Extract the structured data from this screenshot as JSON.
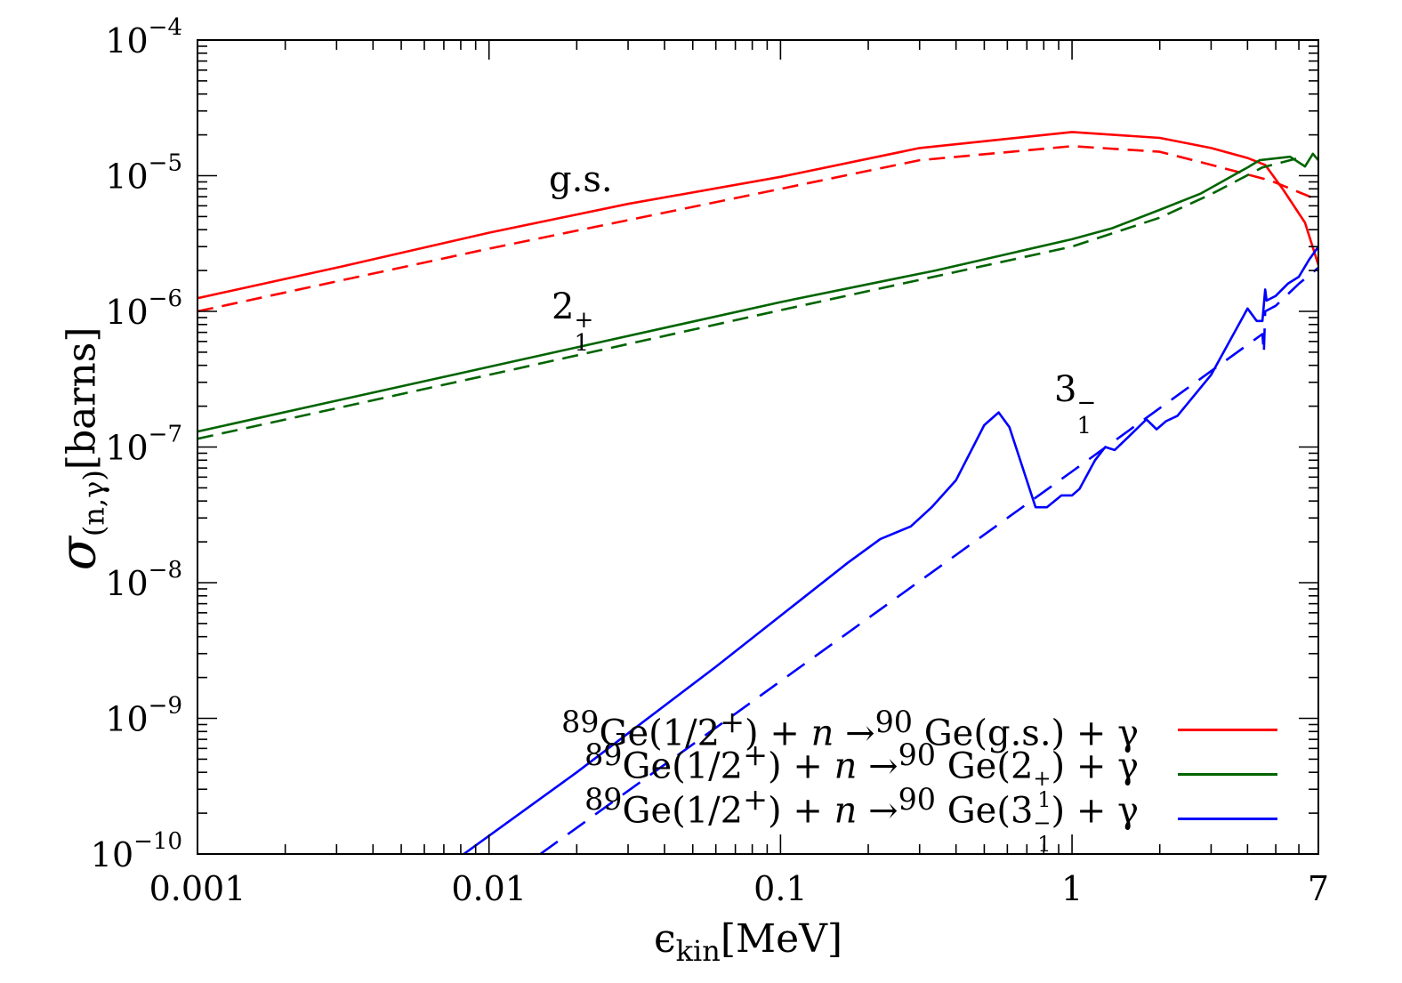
{
  "chart_data": {
    "type": "line",
    "xscale": "log",
    "yscale": "log",
    "xlim": [
      0.001,
      7
    ],
    "ylim": [
      1e-10,
      0.0001
    ],
    "xlabel": {
      "symbol": "ϵ",
      "sub": "kin",
      "unit": "[MeV]"
    },
    "ylabel": {
      "symbol": "σ",
      "sub": "(n,γ)",
      "unit": "[barns]"
    },
    "x_tick_labels": [
      "0.001",
      "0.01",
      "0.1",
      "1",
      "7"
    ],
    "x_tick_values": [
      0.001,
      0.01,
      0.1,
      1,
      7
    ],
    "y_tick_labels": [
      {
        "base": "10",
        "exp": "−4",
        "value": 0.0001
      },
      {
        "base": "10",
        "exp": "−5",
        "value": 1e-05
      },
      {
        "base": "10",
        "exp": "−6",
        "value": 1e-06
      },
      {
        "base": "10",
        "exp": "−7",
        "value": 1e-07
      },
      {
        "base": "10",
        "exp": "−8",
        "value": 1e-08
      },
      {
        "base": "10",
        "exp": "−9",
        "value": 1e-09
      },
      {
        "base": "10",
        "exp": "−10",
        "value": 1e-10
      }
    ],
    "grid": false,
    "legend_position": "bottom-right",
    "annotations": [
      {
        "text": "g.s.",
        "sub": "",
        "sup": ""
      },
      {
        "text": "2",
        "sub": "1",
        "sup": "+"
      },
      {
        "text": "3",
        "sub": "1",
        "sup": "−"
      }
    ],
    "legend": [
      {
        "pre": "89",
        "a": "Ge(1/2",
        "asup": "+",
        "b": ") + ",
        "n": "n",
        "c": " →",
        "sup90": "90",
        "d": " Ge(",
        "state": "g.s.",
        "ssub": "",
        "ssup": "",
        "e": ") + γ",
        "color": "#ff0000"
      },
      {
        "pre": "89",
        "a": "Ge(1/2",
        "asup": "+",
        "b": ") + ",
        "n": "n",
        "c": " →",
        "sup90": "90",
        "d": " Ge(",
        "state": "2",
        "ssub": "1",
        "ssup": "+",
        "e": ") + γ",
        "color": "#006400"
      },
      {
        "pre": "89",
        "a": "Ge(1/2",
        "asup": "+",
        "b": ") + ",
        "n": "n",
        "c": " →",
        "sup90": "90",
        "d": " Ge(",
        "state": "3",
        "ssub": "1",
        "ssup": "−",
        "e": ") + γ",
        "color": "#0000ff"
      }
    ],
    "series": [
      {
        "color": "#ff0000",
        "style": "solid",
        "points": [
          [
            0.001,
            1.25e-06
          ],
          [
            0.003,
            2.1e-06
          ],
          [
            0.01,
            3.8e-06
          ],
          [
            0.03,
            6.2e-06
          ],
          [
            0.1,
            9.8e-06
          ],
          [
            0.3,
            1.6e-05
          ],
          [
            1,
            2.1e-05
          ],
          [
            2,
            1.9e-05
          ],
          [
            3,
            1.6e-05
          ],
          [
            4,
            1.35e-05
          ],
          [
            4.6,
            1.2e-05
          ],
          [
            5.3,
            7.9e-06
          ],
          [
            6.3,
            4.5e-06
          ],
          [
            7,
            2.2e-06
          ]
        ]
      },
      {
        "color": "#ff0000",
        "style": "dashed",
        "points": [
          [
            0.001,
            1e-06
          ],
          [
            0.01,
            2.9e-06
          ],
          [
            0.1,
            8e-06
          ],
          [
            0.3,
            1.3e-05
          ],
          [
            1,
            1.65e-05
          ],
          [
            2,
            1.5e-05
          ],
          [
            2.8,
            1.25e-05
          ],
          [
            4.8,
            9.2e-06
          ],
          [
            7,
            6.6e-06
          ]
        ]
      },
      {
        "color": "#006400",
        "style": "solid",
        "points": [
          [
            0.001,
            1.3e-07
          ],
          [
            0.01,
            3.9e-07
          ],
          [
            0.1,
            1.17e-06
          ],
          [
            0.34,
            2e-06
          ],
          [
            1,
            3.4e-06
          ],
          [
            1.37,
            4.1e-06
          ],
          [
            2,
            5.6e-06
          ],
          [
            2.77,
            7.4e-06
          ],
          [
            4,
            1.15e-05
          ],
          [
            4.4,
            1.3e-05
          ],
          [
            5.6,
            1.38e-05
          ],
          [
            6.3,
            1.17e-05
          ],
          [
            6.7,
            1.45e-05
          ],
          [
            7,
            1.3e-05
          ]
        ]
      },
      {
        "color": "#006400",
        "style": "dashed",
        "points": [
          [
            0.001,
            1.15e-07
          ],
          [
            0.01,
            3.4e-07
          ],
          [
            0.1,
            1.02e-06
          ],
          [
            1,
            3e-06
          ],
          [
            2,
            4.9e-06
          ],
          [
            3,
            7.3e-06
          ],
          [
            4.5,
            1.15e-05
          ],
          [
            6,
            1.35e-05
          ]
        ]
      },
      {
        "color": "#0000ff",
        "style": "solid",
        "points": [
          [
            0.0082,
            1e-10
          ],
          [
            0.02,
            4e-10
          ],
          [
            0.06,
            2.4e-09
          ],
          [
            0.17,
            1.4e-08
          ],
          [
            0.22,
            2.1e-08
          ],
          [
            0.28,
            2.6e-08
          ],
          [
            0.33,
            3.6e-08
          ],
          [
            0.4,
            5.7e-08
          ],
          [
            0.5,
            1.45e-07
          ],
          [
            0.56,
            1.8e-07
          ],
          [
            0.61,
            1.4e-07
          ],
          [
            0.75,
            3.6e-08
          ],
          [
            0.82,
            3.6e-08
          ],
          [
            0.92,
            4.4e-08
          ],
          [
            1.0,
            4.4e-08
          ],
          [
            1.06,
            4.9e-08
          ],
          [
            1.2,
            8e-08
          ],
          [
            1.3,
            1e-07
          ],
          [
            1.4,
            9.5e-08
          ],
          [
            1.6,
            1.25e-07
          ],
          [
            1.8,
            1.6e-07
          ],
          [
            1.95,
            1.35e-07
          ],
          [
            2.1,
            1.55e-07
          ],
          [
            2.3,
            1.7e-07
          ],
          [
            3,
            3.4e-07
          ],
          [
            4.0,
            1.05e-06
          ],
          [
            4.3,
            8.5e-07
          ],
          [
            4.5,
            8.5e-07
          ],
          [
            4.6,
            1.45e-06
          ],
          [
            4.65,
            1.2e-06
          ],
          [
            5,
            1.3e-06
          ],
          [
            5.5,
            1.6e-06
          ],
          [
            6,
            1.8e-06
          ],
          [
            6.5,
            2.4e-06
          ],
          [
            7,
            3e-06
          ]
        ]
      },
      {
        "color": "#0000ff",
        "style": "dashed",
        "points": [
          [
            0.015,
            1e-10
          ],
          [
            1,
            6.6e-08
          ],
          [
            4.5,
            6.8e-07
          ],
          [
            4.55,
            4.9e-07
          ],
          [
            4.6,
            1e-06
          ],
          [
            5,
            1.1e-06
          ],
          [
            6,
            1.6e-06
          ],
          [
            7,
            2.1e-06
          ]
        ]
      }
    ]
  }
}
